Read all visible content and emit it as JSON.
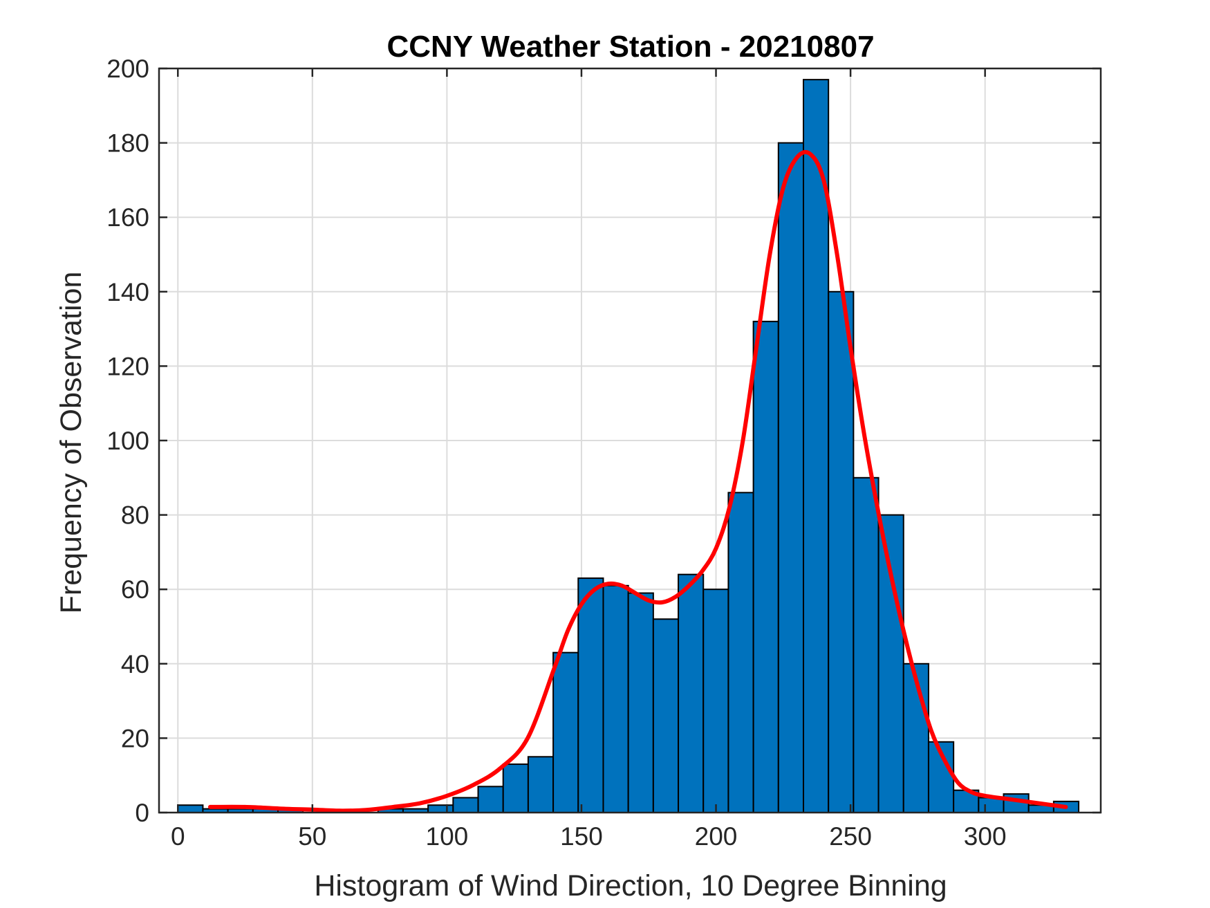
{
  "chart_data": {
    "type": "bar",
    "title": "CCNY Weather Station - 20210807",
    "xlabel": "Histogram of Wind Direction, 10 Degree Binning",
    "ylabel": "Frequency of Observation",
    "xlim": [
      -7,
      343
    ],
    "ylim": [
      0,
      200
    ],
    "xticks": [
      0,
      50,
      100,
      150,
      200,
      250,
      300
    ],
    "yticks": [
      0,
      20,
      40,
      60,
      80,
      100,
      120,
      140,
      160,
      180,
      200
    ],
    "grid": true,
    "bin_width": 9.3,
    "bins": [
      {
        "x": 0,
        "value": 2
      },
      {
        "x": 9.3,
        "value": 1
      },
      {
        "x": 18.6,
        "value": 1
      },
      {
        "x": 27.9,
        "value": 1
      },
      {
        "x": 37.2,
        "value": 1
      },
      {
        "x": 46.5,
        "value": 0
      },
      {
        "x": 55.8,
        "value": 0
      },
      {
        "x": 65.1,
        "value": 0
      },
      {
        "x": 74.4,
        "value": 1
      },
      {
        "x": 83.7,
        "value": 1
      },
      {
        "x": 93,
        "value": 2
      },
      {
        "x": 102.3,
        "value": 4
      },
      {
        "x": 111.6,
        "value": 7
      },
      {
        "x": 120.9,
        "value": 13
      },
      {
        "x": 130.2,
        "value": 15
      },
      {
        "x": 139.5,
        "value": 43
      },
      {
        "x": 148.8,
        "value": 63
      },
      {
        "x": 158.1,
        "value": 61
      },
      {
        "x": 167.4,
        "value": 59
      },
      {
        "x": 176.7,
        "value": 52
      },
      {
        "x": 186,
        "value": 64
      },
      {
        "x": 195.3,
        "value": 60
      },
      {
        "x": 204.6,
        "value": 86
      },
      {
        "x": 213.9,
        "value": 132
      },
      {
        "x": 223.2,
        "value": 180
      },
      {
        "x": 232.5,
        "value": 197
      },
      {
        "x": 241.8,
        "value": 140
      },
      {
        "x": 251.1,
        "value": 90
      },
      {
        "x": 260.4,
        "value": 80
      },
      {
        "x": 269.7,
        "value": 40
      },
      {
        "x": 279,
        "value": 19
      },
      {
        "x": 288.3,
        "value": 6
      },
      {
        "x": 297.6,
        "value": 4
      },
      {
        "x": 306.9,
        "value": 5
      },
      {
        "x": 316.2,
        "value": 2
      },
      {
        "x": 325.5,
        "value": 3
      }
    ],
    "fit_curve": {
      "x": [
        12,
        25,
        40,
        50,
        60,
        70,
        80,
        90,
        100,
        110,
        120,
        130,
        140,
        145,
        150,
        155,
        160,
        165,
        170,
        175,
        180,
        185,
        190,
        195,
        200,
        205,
        210,
        215,
        220,
        225,
        230,
        235,
        240,
        245,
        250,
        255,
        260,
        265,
        270,
        275,
        280,
        285,
        290,
        295,
        300,
        310,
        320,
        330
      ],
      "y": [
        1.5,
        1.5,
        1,
        0.8,
        0.5,
        0.7,
        1.5,
        2.5,
        4.5,
        7.5,
        12,
        20,
        39,
        49,
        56,
        60,
        61.5,
        61,
        59,
        57,
        56.5,
        58,
        61,
        65,
        71,
        82,
        100,
        125,
        150,
        168,
        176,
        177,
        170,
        150,
        125,
        102,
        82,
        64,
        48,
        34,
        22,
        14,
        8,
        5.5,
        4.5,
        3.5,
        2.5,
        1.5
      ],
      "color": "#ff0000"
    },
    "colors": {
      "bar_fill": "#0072bd",
      "bar_edge": "#000000",
      "grid": "#dcdcdc",
      "axes": "#262626",
      "fit": "#ff0000"
    }
  }
}
